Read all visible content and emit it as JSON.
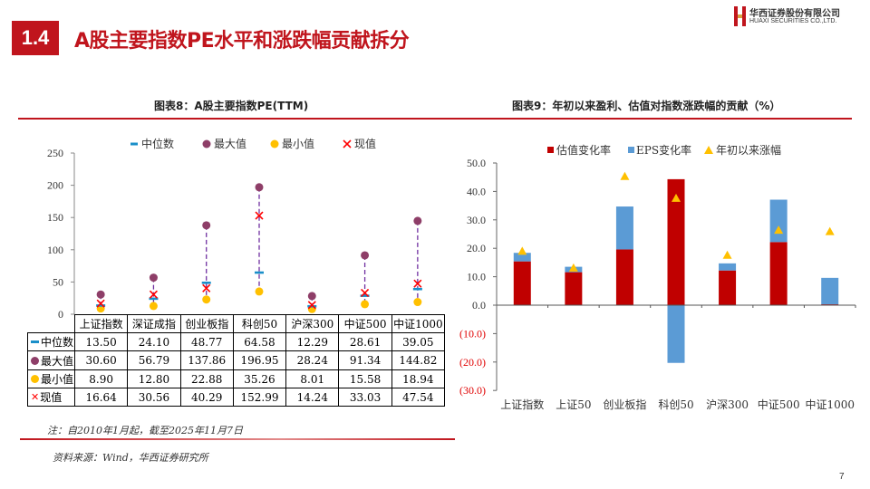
{
  "header": {
    "section_number": "1.4",
    "title": "A股主要指数PE水平和涨跌幅贡献拆分"
  },
  "logo": {
    "name_cn": "华西证券股份有限公司",
    "name_en": "HUAXI SECURITIES CO.,LTD."
  },
  "footer": {
    "note": "注：自2010年1月起，截至2025年11月7日",
    "source": "资料来源：Wind，华西证券研究所",
    "page_number": "7"
  },
  "colors": {
    "brand_red": "#c0151d",
    "median": "#1a8fc9",
    "max": "#8e3e68",
    "min": "#ffc000",
    "current": "#ff0000",
    "valuation": "#c00000",
    "eps": "#5b9bd5",
    "ytd": "#ffc000"
  },
  "chart_data": [
    {
      "type": "scatter",
      "title": "图表8：A股主要指数PE(TTM)",
      "categories": [
        "上证指数",
        "深证成指",
        "创业板指",
        "科创50",
        "沪深300",
        "中证500",
        "中证1000"
      ],
      "ylim": [
        0,
        250
      ],
      "yticks": [
        "0",
        "50",
        "100",
        "150",
        "200",
        "250"
      ],
      "legend_position": "top",
      "series": [
        {
          "name": "中位数",
          "marker": "dash",
          "values": [
            13.5,
            24.1,
            48.77,
            64.58,
            12.29,
            28.61,
            39.05
          ],
          "labels": [
            "13.50",
            "24.10",
            "48.77",
            "64.58",
            "12.29",
            "28.61",
            "39.05"
          ]
        },
        {
          "name": "最大值",
          "marker": "circle",
          "values": [
            30.6,
            56.79,
            137.86,
            196.95,
            28.24,
            91.34,
            144.82
          ],
          "labels": [
            "30.60",
            "56.79",
            "137.86",
            "196.95",
            "28.24",
            "91.34",
            "144.82"
          ]
        },
        {
          "name": "最小值",
          "marker": "circle",
          "values": [
            8.9,
            12.8,
            22.88,
            35.26,
            8.01,
            15.58,
            18.94
          ],
          "labels": [
            "8.90",
            "12.80",
            "22.88",
            "35.26",
            "8.01",
            "15.58",
            "18.94"
          ]
        },
        {
          "name": "现值",
          "marker": "x",
          "values": [
            16.64,
            30.56,
            40.29,
            152.99,
            14.24,
            33.03,
            47.54
          ],
          "labels": [
            "16.64",
            "30.56",
            "40.29",
            "152.99",
            "14.24",
            "33.03",
            "47.54"
          ]
        }
      ],
      "data_table": true
    },
    {
      "type": "bar",
      "stacked": true,
      "title": "图表9：年初以来盈利、估值对指数涨跌幅的贡献（%）",
      "categories": [
        "上证指数",
        "上证50",
        "创业板指",
        "科创50",
        "沪深300",
        "中证500",
        "中证1000"
      ],
      "ylim": [
        -30,
        50
      ],
      "yticks": [
        "(30.0)",
        "(20.0)",
        "(10.0)",
        "0.0",
        "10.0",
        "20.0",
        "30.0",
        "40.0",
        "50.0"
      ],
      "legend_position": "top",
      "series": [
        {
          "name": "估值变化率",
          "type": "bar",
          "values": [
            15.4,
            11.6,
            19.6,
            44.3,
            12.2,
            22.2,
            0.3
          ]
        },
        {
          "name": "EPS变化率",
          "type": "bar",
          "values": [
            3.0,
            1.9,
            15.1,
            -20.3,
            2.5,
            14.9,
            9.3
          ]
        },
        {
          "name": "年初以来涨幅",
          "type": "marker-triangle",
          "values": [
            19.0,
            13.1,
            45.3,
            37.6,
            17.6,
            26.4,
            25.9
          ]
        }
      ]
    }
  ]
}
